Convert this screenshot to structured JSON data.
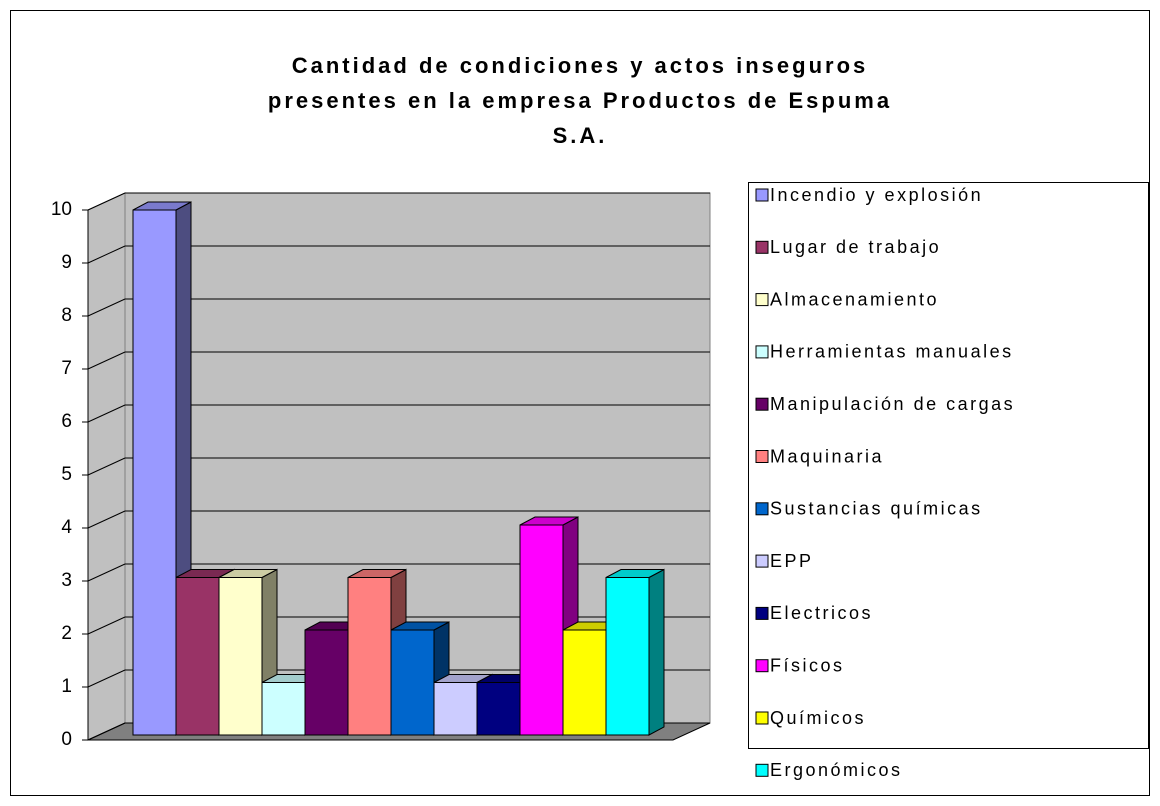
{
  "chart_data": {
    "type": "bar3d",
    "title": "Cantidad de condiciones y actos inseguros presentes en la empresa Productos de Espuma S.A.",
    "ylim": [
      0,
      10
    ],
    "yticks": [
      0,
      1,
      2,
      3,
      4,
      5,
      6,
      7,
      8,
      9,
      10
    ],
    "grid": true,
    "legend": "right",
    "series": [
      {
        "name": "Incendio y explosión",
        "color": "#9999FF",
        "values": [
          10
        ]
      },
      {
        "name": "Lugar de trabajo",
        "color": "#993366",
        "values": [
          3
        ]
      },
      {
        "name": "Almacenamiento",
        "color": "#FFFFCC",
        "values": [
          3
        ]
      },
      {
        "name": "Herramientas manuales",
        "color": "#CCFFFF",
        "values": [
          1
        ]
      },
      {
        "name": "Manipulación de cargas",
        "color": "#660066",
        "values": [
          2
        ]
      },
      {
        "name": "Maquinaria",
        "color": "#FF8080",
        "values": [
          3
        ]
      },
      {
        "name": "Sustancias químicas",
        "color": "#0066CC",
        "values": [
          2
        ]
      },
      {
        "name": "EPP",
        "color": "#CCCCFF",
        "values": [
          1
        ]
      },
      {
        "name": "Electricos",
        "color": "#000080",
        "values": [
          1
        ]
      },
      {
        "name": "Físicos",
        "color": "#FF00FF",
        "values": [
          4
        ]
      },
      {
        "name": "Químicos",
        "color": "#FFFF00",
        "values": [
          2
        ]
      },
      {
        "name": "Ergonómicos",
        "color": "#00FFFF",
        "values": [
          3
        ]
      }
    ]
  }
}
